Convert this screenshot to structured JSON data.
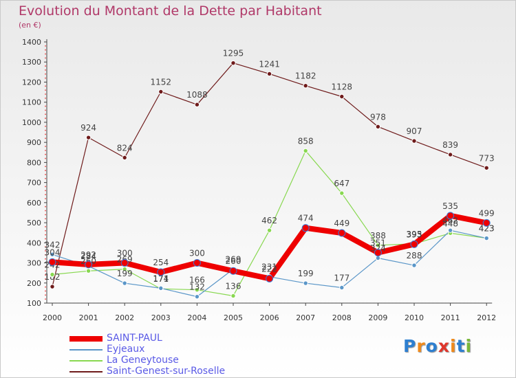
{
  "title": "Evolution du Montant de la Dette par Habitant",
  "subtitle": "(en €)",
  "brand": "Proxiti",
  "chart_data": {
    "type": "line",
    "x": [
      "2000",
      "2001",
      "2002",
      "2003",
      "2004",
      "2005",
      "2006",
      "2007",
      "2008",
      "2009",
      "2010",
      "2011",
      "2012"
    ],
    "ylim": [
      100,
      1400
    ],
    "yticks": [
      100,
      200,
      300,
      400,
      500,
      600,
      700,
      800,
      900,
      1000,
      1100,
      1200,
      1300,
      1400
    ],
    "grid": false,
    "legend_position": "bottom-left",
    "series": [
      {
        "name": "Saint-Genest-sur-Roselle",
        "color": "#6e1a1a",
        "width": 1.2,
        "values": [
          182,
          924,
          824,
          1152,
          1088,
          1295,
          1241,
          1182,
          1128,
          978,
          907,
          839,
          773
        ]
      },
      {
        "name": "La Geneytouse",
        "color": "#88d850",
        "width": 1.2,
        "values": [
          242,
          260,
          269,
          171,
          166,
          136,
          462,
          858,
          647,
          388,
          395,
          448,
          423
        ]
      },
      {
        "name": "Eyjeaux",
        "color": "#5a96c8",
        "width": 1.2,
        "values": [
          342,
          284,
          199,
          174,
          132,
          269,
          231,
          199,
          177,
          324,
          288,
          462,
          423
        ]
      },
      {
        "name": "SAINT-PAUL",
        "color": "#ee0000",
        "width": 8,
        "values": [
          304,
          292,
          300,
          254,
          300,
          260,
          222,
          474,
          449,
          351,
          393,
          535,
          499
        ]
      }
    ]
  },
  "legend": [
    {
      "label": "SAINT-PAUL",
      "color": "#ee0000",
      "thickness": 8
    },
    {
      "label": "Eyjeaux",
      "color": "#5a96c8",
      "thickness": 2
    },
    {
      "label": "La Geneytouse",
      "color": "#88d850",
      "thickness": 2
    },
    {
      "label": "Saint-Genest-sur-Roselle",
      "color": "#6e1a1a",
      "thickness": 2
    }
  ]
}
